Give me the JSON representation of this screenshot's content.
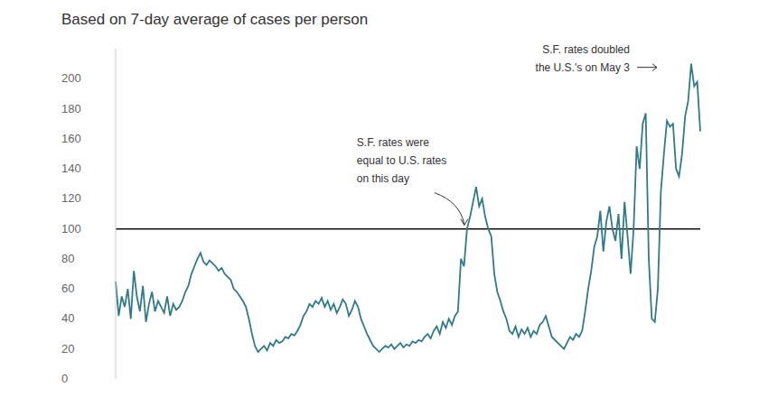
{
  "chart_data": {
    "type": "line",
    "title": "Based on 7-day average of cases per person",
    "color": "#2f7b8a",
    "categories": [
      null,
      null,
      null,
      null,
      null,
      null,
      null,
      null,
      null,
      null,
      null,
      null,
      null,
      null,
      null,
      null,
      null,
      null,
      null,
      null,
      null,
      null,
      null,
      null,
      null,
      null,
      null,
      null,
      null,
      null,
      null,
      null,
      null,
      null,
      null,
      null,
      null,
      null,
      null,
      null,
      null,
      null,
      null,
      null,
      null,
      null,
      null,
      null,
      null,
      null,
      null,
      null,
      null,
      null,
      null,
      null,
      null,
      null,
      null,
      null,
      null,
      null,
      null,
      null,
      null,
      null,
      null,
      null,
      null,
      null,
      null,
      null,
      null,
      null,
      null,
      null,
      null,
      null,
      null,
      null,
      null,
      null,
      null,
      null,
      null,
      null,
      null,
      null,
      null,
      null,
      null,
      null,
      null,
      null,
      null,
      null,
      null,
      null,
      null,
      null,
      null,
      null,
      null,
      null,
      null,
      null,
      null,
      null,
      null,
      null,
      null,
      null,
      null,
      null,
      null,
      null,
      null,
      null,
      null,
      null,
      null,
      null,
      null,
      null,
      null,
      null,
      null,
      null,
      null,
      null,
      null,
      null,
      null,
      null,
      null,
      null,
      null,
      null,
      null,
      null,
      null,
      null,
      null,
      null,
      null,
      null,
      null,
      null,
      null,
      null,
      null,
      null,
      null,
      null,
      null,
      null,
      null,
      null,
      null,
      null,
      null,
      null,
      null,
      null,
      null,
      null,
      null,
      null,
      null,
      null,
      null,
      null,
      null,
      null,
      null,
      null,
      null,
      null,
      null,
      null,
      null,
      null,
      null,
      null,
      null,
      null,
      null,
      null,
      null,
      null,
      null,
      null,
      null,
      null
    ],
    "values": [
      65,
      42,
      55,
      48,
      60,
      40,
      72,
      55,
      45,
      62,
      38,
      50,
      58,
      45,
      52,
      48,
      44,
      55,
      42,
      50,
      46,
      48,
      52,
      58,
      62,
      70,
      75,
      80,
      84,
      78,
      76,
      79,
      77,
      75,
      72,
      74,
      70,
      68,
      66,
      60,
      58,
      55,
      52,
      48,
      40,
      30,
      22,
      18,
      20,
      22,
      19,
      24,
      22,
      26,
      24,
      25,
      28,
      27,
      30,
      29,
      32,
      36,
      42,
      45,
      50,
      48,
      52,
      50,
      54,
      48,
      52,
      46,
      50,
      44,
      48,
      53,
      50,
      42,
      46,
      52,
      48,
      40,
      35,
      30,
      26,
      22,
      20,
      18,
      20,
      22,
      21,
      23,
      20,
      22,
      24,
      21,
      23,
      22,
      25,
      24,
      26,
      25,
      28,
      30,
      27,
      32,
      35,
      30,
      38,
      34,
      40,
      36,
      42,
      45,
      80,
      75,
      100,
      108,
      118,
      128,
      115,
      120,
      108,
      100,
      95,
      70,
      58,
      52,
      45,
      40,
      32,
      30,
      35,
      28,
      33,
      30,
      34,
      28,
      32,
      30,
      36,
      38,
      42,
      35,
      28,
      26,
      24,
      22,
      20,
      24,
      28,
      26,
      30,
      28,
      32,
      45,
      60,
      72,
      88,
      95,
      112,
      85,
      105,
      115,
      100,
      92,
      110,
      80,
      118,
      95,
      70,
      100,
      155,
      140,
      170,
      177,
      80,
      40,
      38,
      60,
      125,
      150,
      172,
      168,
      170,
      140,
      135,
      150,
      175,
      185,
      210,
      195,
      198,
      165
    ],
    "ylim": [
      0,
      220
    ],
    "yticks": [
      0,
      20,
      40,
      60,
      80,
      100,
      120,
      140,
      160,
      180,
      200
    ],
    "grid": false,
    "tick_labels": "y",
    "reference_line": 100,
    "annotations": [
      {
        "text": [
          "S.F. rates were",
          "equal to U.S. rates",
          "on this day"
        ],
        "index": 116,
        "value": 100
      },
      {
        "text": [
          "S.F. rates doubled",
          "the U.S.'s on May 3"
        ],
        "index": 190,
        "value": 210
      }
    ]
  }
}
